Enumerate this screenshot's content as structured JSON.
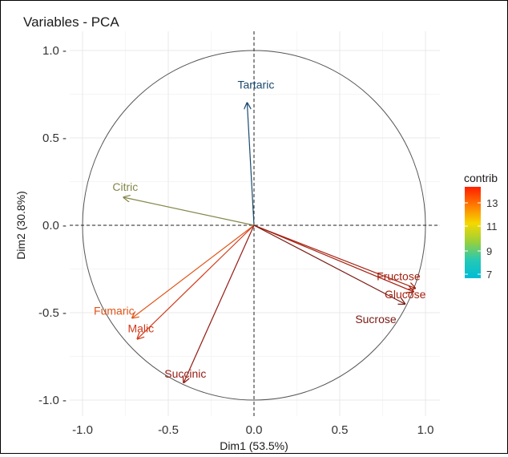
{
  "chart_data": {
    "type": "pca_variables_biplot",
    "title": "Variables - PCA",
    "xlabel": "Dim1 (53.5%)",
    "ylabel": "Dim2 (30.8%)",
    "xlim": [
      -1.05,
      1.05
    ],
    "ylim": [
      -1.07,
      1.07
    ],
    "x_ticks": [
      -1.0,
      -0.5,
      0.0,
      0.5,
      1.0
    ],
    "x_tick_labels": [
      "-1.0",
      "-0.5",
      "0.0",
      "0.5",
      "1.0"
    ],
    "y_ticks": [
      1.0,
      0.5,
      0.0,
      -0.5,
      -1.0
    ],
    "y_tick_labels": [
      "1.0 -",
      "0.5 -",
      "0.0 -",
      "-0.5 -",
      "-1.0 -"
    ],
    "grid": true,
    "unit_circle": true,
    "variables": [
      {
        "name": "Tartaric",
        "x": -0.04,
        "y": 0.7,
        "color": "#1a4a6e"
      },
      {
        "name": "Citric",
        "x": -0.76,
        "y": 0.16,
        "color": "#86864a"
      },
      {
        "name": "Fructose",
        "x": 0.94,
        "y": -0.36,
        "color": "#a51f0f"
      },
      {
        "name": "Glucose",
        "x": 0.93,
        "y": -0.38,
        "color": "#a51f0f"
      },
      {
        "name": "Sucrose",
        "x": 0.88,
        "y": -0.45,
        "color": "#7a1a12"
      },
      {
        "name": "Fumaric",
        "x": -0.71,
        "y": -0.53,
        "color": "#e0561a"
      },
      {
        "name": "Malic",
        "x": -0.68,
        "y": -0.65,
        "color": "#d2391a"
      },
      {
        "name": "Succinic",
        "x": -0.41,
        "y": -0.9,
        "color": "#951a14"
      }
    ],
    "legend": {
      "title": "contrib",
      "placement": "right",
      "labels": [
        "13",
        "11",
        "9",
        "7"
      ],
      "gradient": [
        "#ff1e00",
        "#ff7a00",
        "#f5d800",
        "#9ad03a",
        "#26c9b4",
        "#00bcd6"
      ]
    }
  }
}
